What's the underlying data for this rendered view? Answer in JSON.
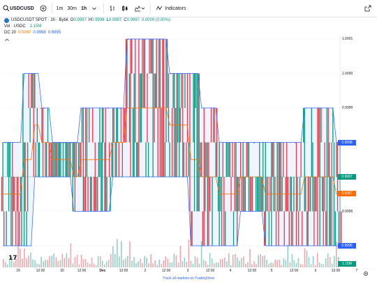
{
  "toolbar": {
    "symbol": "USDCUSD",
    "intervals": [
      "1m",
      "30m",
      "1h"
    ],
    "active_interval": "1h",
    "indicators_label": "Indicators"
  },
  "legend": {
    "title": "USDCUSDT SPOT · 1h · Bybit",
    "ohlc": {
      "o_label": "O",
      "o": "0.9997",
      "h_label": "H",
      "h": "0.9998",
      "l_label": "L",
      "l": "0.9997",
      "c_label": "C",
      "c": "0.9997",
      "change": "0.0000 (0.00%)"
    },
    "vol_label": "Vol · USDC",
    "vol_value": "1.15M",
    "dc_label": "DC 20",
    "dc_values": [
      "0.9997",
      "0.9998",
      "0.9995"
    ]
  },
  "price_axis": [
    "1.0001",
    "1.0000",
    "0.9999",
    "0.9998",
    "0.9997",
    "0.9996",
    "0.9995"
  ],
  "price_tags": {
    "dc_upper": "0.9998",
    "last": "0.9997",
    "dc_basis": "0.9997",
    "dc_lower": "0.9995",
    "volume": "1.15M"
  },
  "time_axis": [
    "29",
    "12:00",
    "30",
    "12:00",
    "Dec",
    "12:00",
    "2",
    "12:00",
    "3",
    "12:00",
    "4",
    "12:00",
    "5",
    "12:00",
    "6",
    "12:00",
    "7"
  ],
  "footer": "Track all markets on TradingView",
  "colors": {
    "up": "#089981",
    "down": "#f23645",
    "channel": "#2962ff",
    "basis": "#ff6d00"
  },
  "chart_data": {
    "type": "candlestick",
    "title": "USDCUSDT SPOT · 1h · Bybit",
    "ylim": [
      0.99945,
      1.00012
    ],
    "y_ticks": [
      1.0001,
      1.0,
      0.9999,
      0.9998,
      0.9997,
      0.9996,
      0.9995
    ],
    "x_ticks": [
      "29",
      "12:00",
      "30",
      "12:00",
      "Dec",
      "12:00",
      "2",
      "12:00",
      "3",
      "12:00",
      "4",
      "12:00",
      "5",
      "12:00",
      "6",
      "12:00",
      "7"
    ],
    "donchian_upper": [
      0.9998,
      0.9998,
      0.9998,
      0.9998,
      0.9998,
      0.9998,
      1.0,
      1.0,
      1.0,
      1.0,
      1.0,
      0.9999,
      0.9999,
      0.9999,
      0.9998,
      0.9998,
      0.9998,
      0.9998,
      0.9998,
      0.9998,
      0.9998,
      0.9998,
      0.9999,
      0.9999,
      0.9999,
      0.9999,
      0.9999,
      0.9999,
      0.9999,
      0.9999,
      0.9999,
      0.9999,
      0.9999,
      0.9999,
      0.9999,
      1.0001,
      1.0001,
      1.0001,
      1.0001,
      1.0001,
      1.0001,
      1.0001,
      1.0001,
      1.0001,
      1.0001,
      1.0001,
      1.0001,
      1.0,
      1.0,
      1.0,
      1.0,
      1.0,
      1.0,
      1.0,
      1.0,
      1.0,
      0.9999,
      0.9999,
      0.9999,
      0.9999,
      0.9999,
      0.9998,
      0.9998,
      0.9998,
      0.9998,
      0.9998,
      0.9998,
      0.9998,
      0.9998,
      0.9998,
      0.9998,
      0.9998,
      0.9998,
      0.9998,
      0.9998,
      0.9998,
      0.9998,
      0.9998,
      0.9998,
      0.9998,
      0.9998,
      0.9998,
      0.9998,
      0.9998,
      0.9998,
      0.9999,
      0.9999,
      0.9999,
      0.9999,
      0.9999,
      0.9999,
      0.9999,
      0.9999,
      0.9999,
      0.9998,
      0.9998
    ],
    "donchian_lower": [
      0.9995,
      0.9995,
      0.9995,
      0.9995,
      0.9995,
      0.9995,
      0.9995,
      0.9995,
      0.9995,
      0.9997,
      0.9997,
      0.9997,
      0.9997,
      0.9997,
      0.9997,
      0.9997,
      0.9997,
      0.9997,
      0.9997,
      0.9997,
      0.9996,
      0.9996,
      0.9996,
      0.9996,
      0.9996,
      0.9996,
      0.9996,
      0.9996,
      0.9996,
      0.9996,
      0.9996,
      0.9997,
      0.9997,
      0.9997,
      0.9997,
      0.9997,
      0.9997,
      0.9997,
      0.9997,
      0.9997,
      0.9997,
      0.9997,
      0.9997,
      0.9997,
      0.9997,
      0.9997,
      0.9997,
      0.9997,
      0.9997,
      0.9997,
      0.9997,
      0.9997,
      0.9997,
      0.9995,
      0.9995,
      0.9995,
      0.9995,
      0.9995,
      0.9995,
      0.9995,
      0.9995,
      0.9995,
      0.9995,
      0.9995,
      0.9995,
      0.9995,
      0.9995,
      0.9996,
      0.9996,
      0.9996,
      0.9996,
      0.9996,
      0.9996,
      0.9996,
      0.9995,
      0.9995,
      0.9995,
      0.9995,
      0.9995,
      0.9995,
      0.9995,
      0.9995,
      0.9995,
      0.9995,
      0.9995,
      0.9995,
      0.9995,
      0.9995,
      0.9995,
      0.9995,
      0.9995,
      0.9995,
      0.9995,
      0.9995,
      0.9995,
      0.9995
    ],
    "last_price": 0.9997,
    "volume_last": "1.15M"
  }
}
